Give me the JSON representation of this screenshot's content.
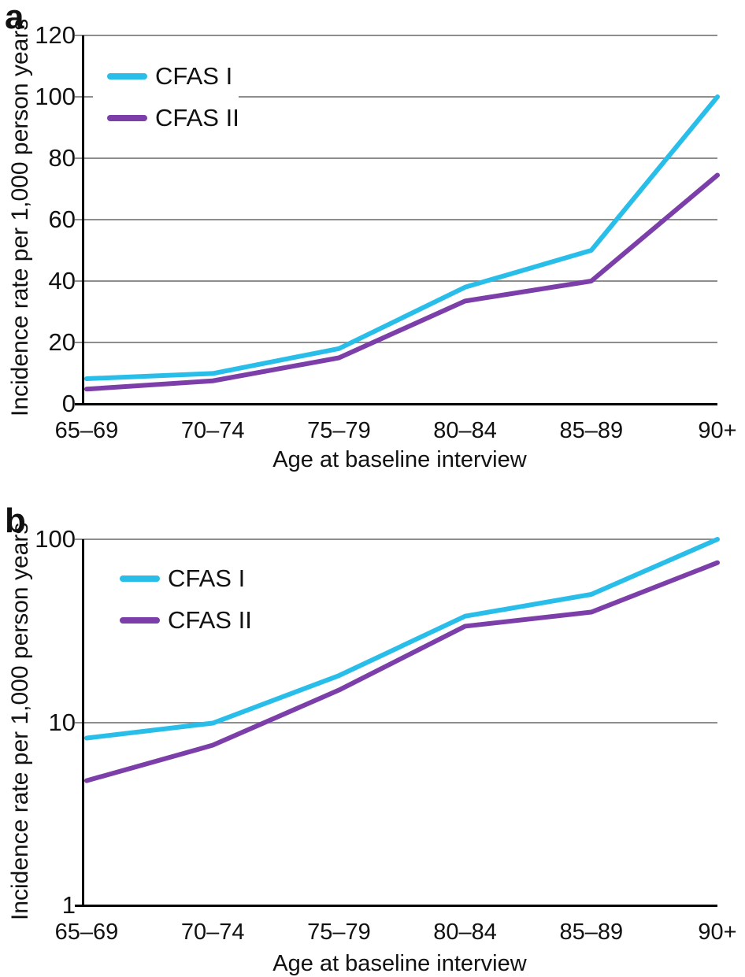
{
  "chart_data": [
    {
      "type": "line",
      "panel_label": "a",
      "xlabel": "Age at baseline interview",
      "ylabel": "Incidence rate per 1,000 person years",
      "yscale": "linear",
      "ylim": [
        0,
        120
      ],
      "yticks": [
        0,
        20,
        40,
        60,
        80,
        100,
        120
      ],
      "grid": "horizontal",
      "legend_position": "top-left",
      "categories": [
        "65–69",
        "70–74",
        "75–79",
        "80–84",
        "85–89",
        "90+"
      ],
      "series": [
        {
          "name": "CFAS I",
          "color": "#29BEE9",
          "values": [
            8.2,
            9.9,
            18,
            38,
            50,
            100
          ]
        },
        {
          "name": "CFAS II",
          "color": "#7C3EA8",
          "values": [
            4.8,
            7.5,
            15,
            33.5,
            40,
            74.5
          ]
        }
      ]
    },
    {
      "type": "line",
      "panel_label": "b",
      "xlabel": "Age at baseline interview",
      "ylabel": "Incidence rate per 1,000 person years",
      "yscale": "log",
      "ylim": [
        1,
        100
      ],
      "yticks": [
        1,
        10,
        100
      ],
      "grid": "horizontal",
      "legend_position": "top-left",
      "categories": [
        "65–69",
        "70–74",
        "75–79",
        "80–84",
        "85–89",
        "90+"
      ],
      "series": [
        {
          "name": "CFAS I",
          "color": "#29BEE9",
          "values": [
            8.2,
            9.9,
            18,
            38,
            50,
            100
          ]
        },
        {
          "name": "CFAS II",
          "color": "#7C3EA8",
          "values": [
            4.8,
            7.5,
            15,
            33.5,
            40,
            74.5
          ]
        }
      ]
    }
  ],
  "colors": {
    "gridline": "#8e8e8e",
    "axis": "#000000",
    "text": "#111111",
    "background": "#ffffff"
  }
}
